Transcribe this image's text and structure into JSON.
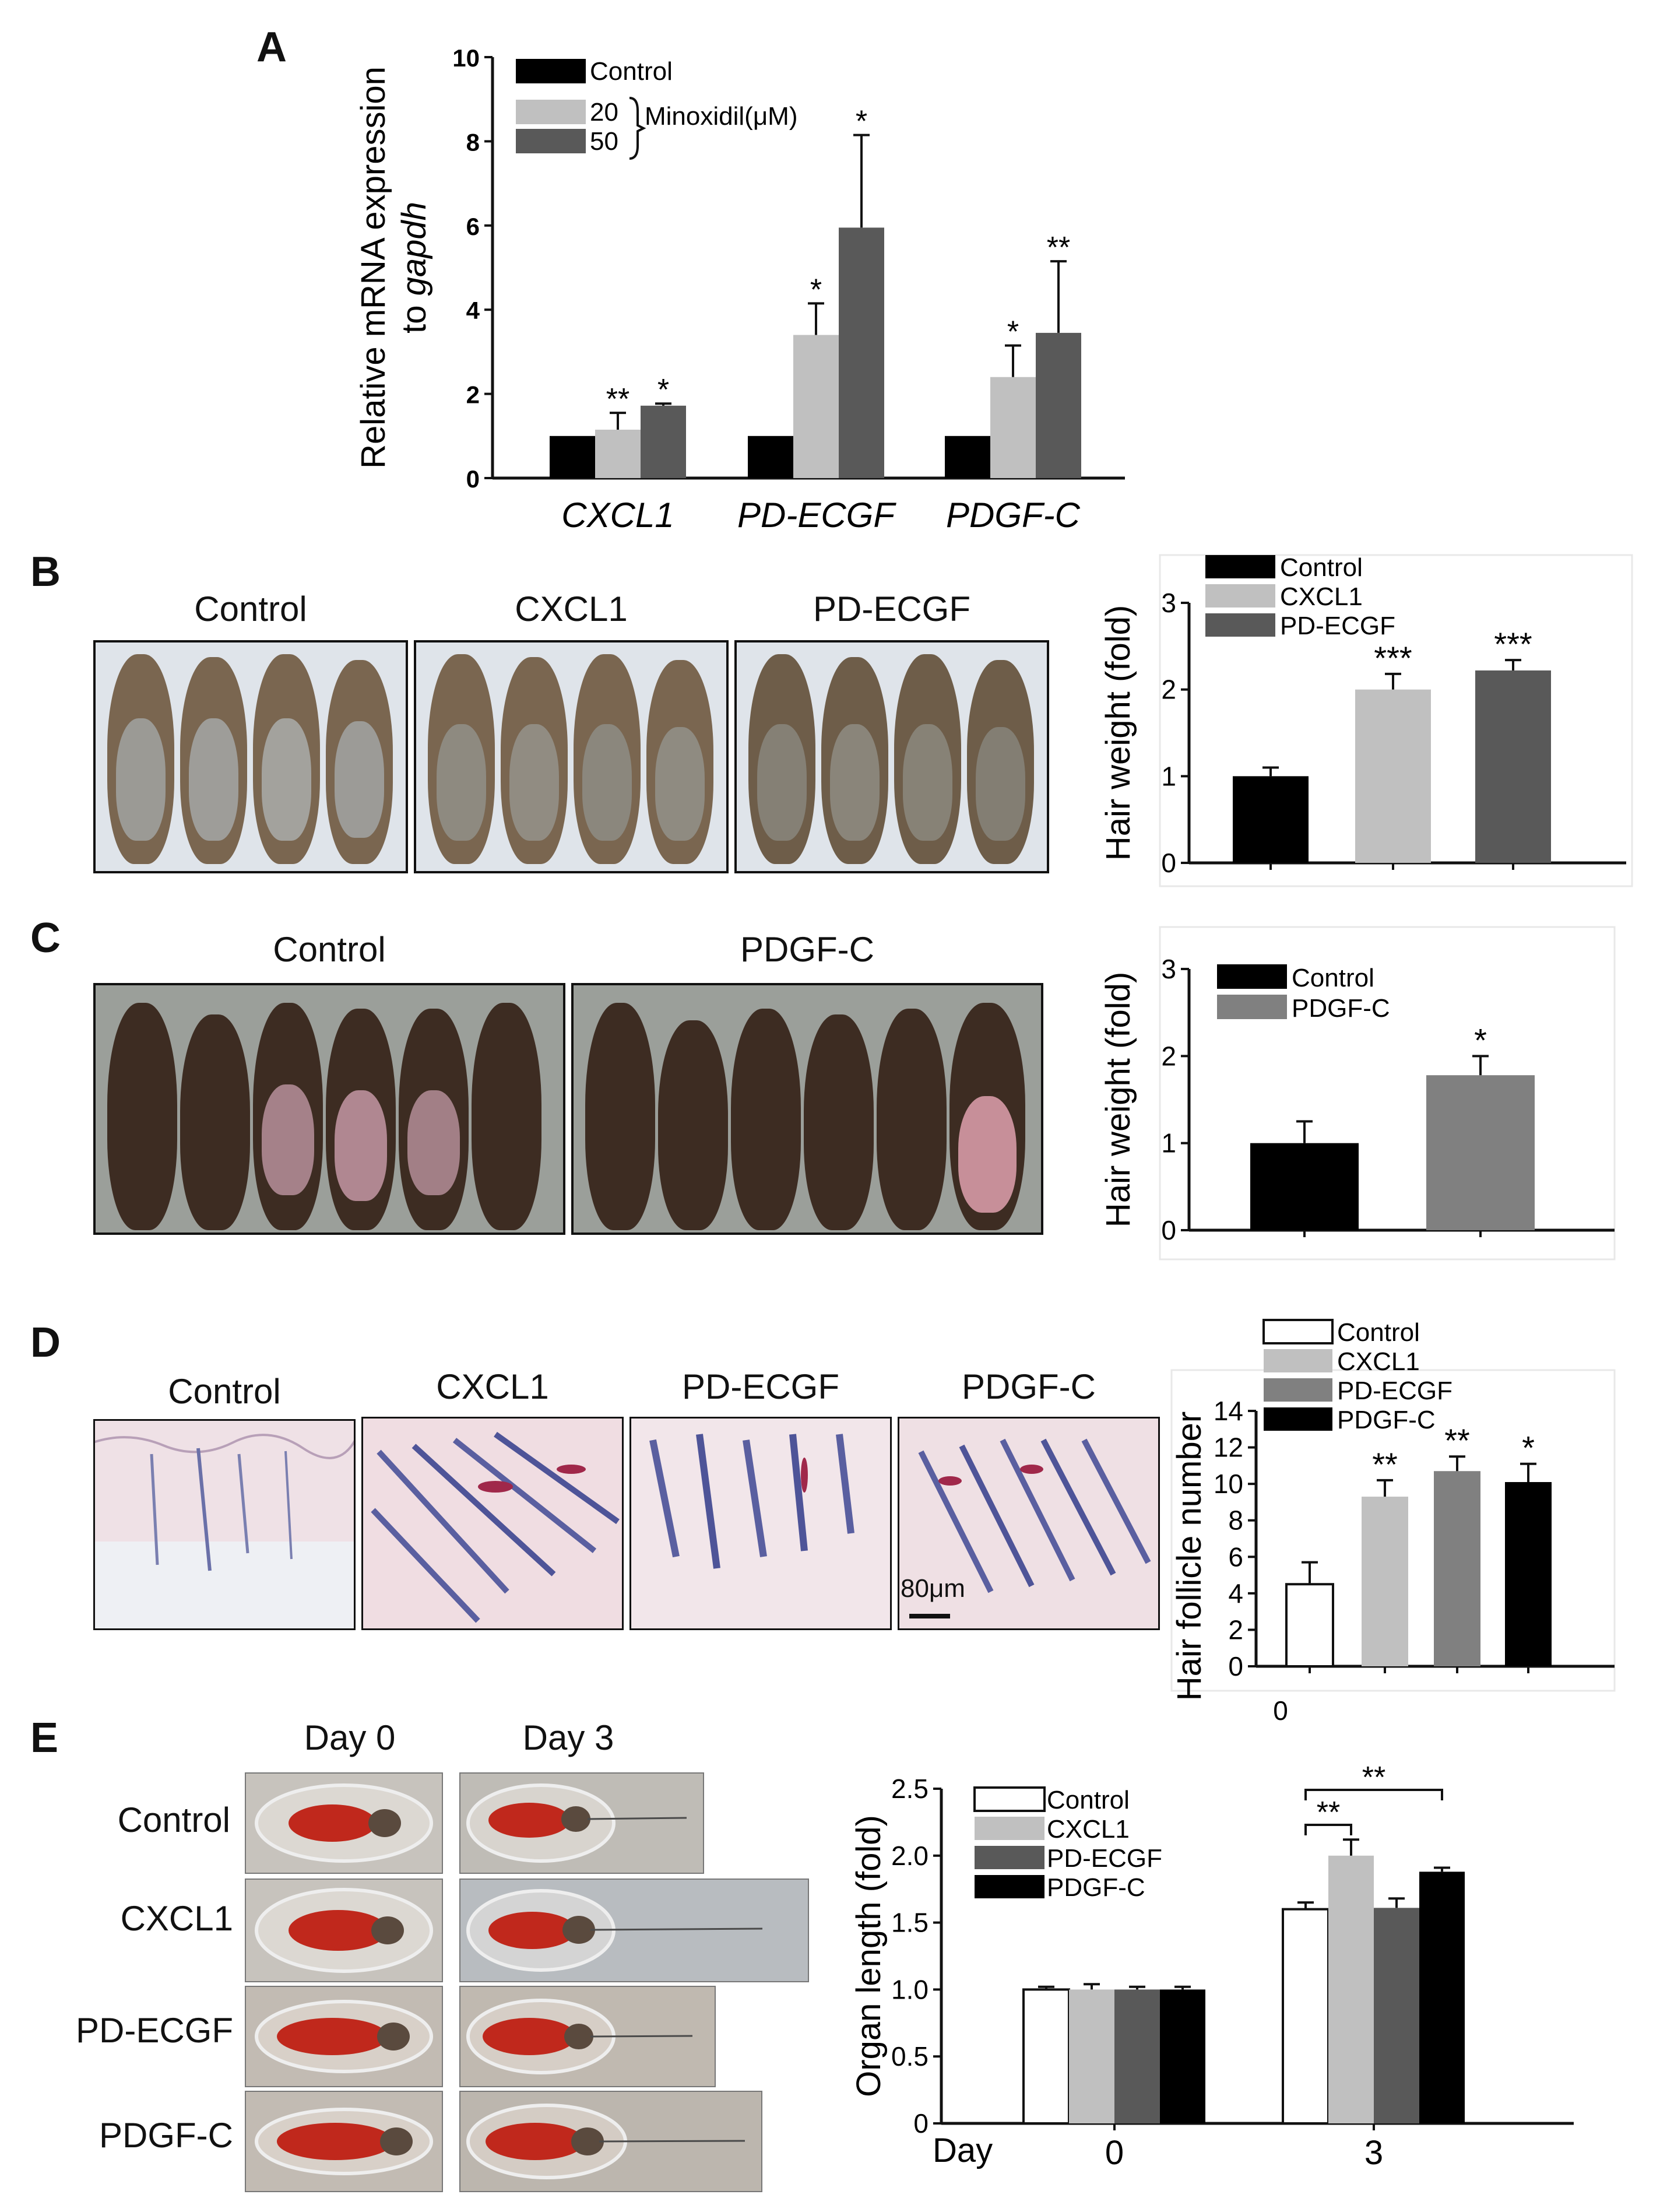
{
  "panels": {
    "A": {
      "letter": "A"
    },
    "B": {
      "letter": "B",
      "photo_labels": [
        "Control",
        "CXCL1",
        "PD-ECGF"
      ]
    },
    "C": {
      "letter": "C",
      "photo_labels": [
        "Control",
        "PDGF-C"
      ]
    },
    "D": {
      "letter": "D",
      "photo_labels": [
        "Control",
        "CXCL1",
        "PD-ECGF",
        "PDGF-C"
      ],
      "scale_bar": "80μm"
    },
    "E": {
      "letter": "E",
      "column_labels": [
        "Day 0",
        "Day 3"
      ],
      "row_labels": [
        "Control",
        "CXCL1",
        "PD-ECGF",
        "PDGF-C"
      ]
    }
  },
  "colors": {
    "black": "#000000",
    "light_gray": "#c0c0c0",
    "dark_gray": "#595959",
    "mid_gray": "#808080",
    "white": "#ffffff",
    "mouse_brown": "#6b5a45",
    "mouse_dark": "#3a2a1f",
    "shaved_skin": "#9a9a95",
    "pink_skin": "#c98a94",
    "histo_bg": "#f1e2e6",
    "organ_red": "#c0281c"
  },
  "chart_data": [
    {
      "id": "A",
      "type": "bar",
      "ylabel_main": "Relative mRNA expression",
      "ylabel_to": "to ",
      "ylabel_gene": "gapdh",
      "ylim": [
        0,
        10
      ],
      "yticks": [
        "0",
        "2",
        "4",
        "6",
        "8",
        "10"
      ],
      "categories": [
        "CXCL1",
        "PD-ECGF",
        "PDGF-C"
      ],
      "legend": [
        "Control",
        "20",
        "50"
      ],
      "legend_group": "Minoxidil(μM)",
      "series": [
        {
          "name": "Control",
          "color": "#000000",
          "values": [
            1,
            1,
            1
          ],
          "errors": [
            0,
            0,
            0
          ],
          "sig": [
            "",
            "",
            ""
          ]
        },
        {
          "name": "20",
          "color": "#c0c0c0",
          "values": [
            1.15,
            3.4,
            2.4
          ],
          "errors": [
            0.4,
            0.75,
            0.75
          ],
          "sig": [
            "**",
            "*",
            "*"
          ]
        },
        {
          "name": "50",
          "color": "#595959",
          "values": [
            1.72,
            5.95,
            3.45
          ],
          "errors": [
            0.05,
            2.2,
            1.7
          ],
          "sig": [
            "*",
            "*",
            "**"
          ]
        }
      ]
    },
    {
      "id": "B",
      "type": "bar",
      "ylabel": "Hair weight  (fold)",
      "ylim": [
        0,
        3
      ],
      "yticks": [
        "0",
        "1",
        "2",
        "3"
      ],
      "categories": [
        "Control",
        "CXCL1",
        "PD-ECGF"
      ],
      "colors": [
        "#000000",
        "#c0c0c0",
        "#595959"
      ],
      "values": [
        1.0,
        2.0,
        2.22
      ],
      "errors": [
        0.1,
        0.18,
        0.12
      ],
      "sig": [
        "",
        "***",
        "***"
      ],
      "legend": [
        "Control",
        "CXCL1",
        "PD-ECGF"
      ]
    },
    {
      "id": "C",
      "type": "bar",
      "ylabel": "Hair weight  (fold)",
      "ylim": [
        0,
        3
      ],
      "yticks": [
        "0",
        "1",
        "2",
        "3"
      ],
      "categories": [
        "Control",
        "PDGF-C"
      ],
      "colors": [
        "#000000",
        "#808080"
      ],
      "values": [
        1.0,
        1.78
      ],
      "errors": [
        0.25,
        0.22
      ],
      "sig": [
        "",
        "*"
      ],
      "legend": [
        "Control",
        "PDGF-C"
      ]
    },
    {
      "id": "D",
      "type": "bar",
      "ylabel": "Hair follicle  number",
      "ylim": [
        0,
        14
      ],
      "yticks": [
        "0",
        "2",
        "4",
        "6",
        "8",
        "10",
        "12",
        "14"
      ],
      "xlabel_below": "0",
      "categories": [
        "Control",
        "CXCL1",
        "PD-ECGF",
        "PDGF-C"
      ],
      "colors": [
        "#ffffff",
        "#c0c0c0",
        "#808080",
        "#000000"
      ],
      "values": [
        4.5,
        9.3,
        10.7,
        10.1
      ],
      "errors": [
        1.2,
        0.9,
        0.8,
        1.0
      ],
      "sig": [
        "",
        "**",
        "**",
        "*"
      ],
      "legend": [
        "Control",
        "CXCL1",
        "PD-ECGF",
        "PDGF-C"
      ]
    },
    {
      "id": "E",
      "type": "bar",
      "ylabel": "Organ length  (fold)",
      "ylim": [
        0,
        2.5
      ],
      "yticks": [
        "0",
        "0.5",
        "1.0",
        "1.5",
        "2.0",
        "2.5"
      ],
      "xlabel": "Day",
      "categories": [
        "0",
        "3"
      ],
      "legend": [
        "Control",
        "CXCL1",
        "PD-ECGF",
        "PDGF-C"
      ],
      "series": [
        {
          "name": "Control",
          "color": "#ffffff",
          "values": [
            1.0,
            1.6
          ],
          "errors": [
            0.02,
            0.05
          ]
        },
        {
          "name": "CXCL1",
          "color": "#c0c0c0",
          "values": [
            1.0,
            2.0
          ],
          "errors": [
            0.04,
            0.12
          ]
        },
        {
          "name": "PD-ECGF",
          "color": "#595959",
          "values": [
            1.0,
            1.61
          ],
          "errors": [
            0.02,
            0.07
          ]
        },
        {
          "name": "PDGF-C",
          "color": "#000000",
          "values": [
            1.0,
            1.88
          ],
          "errors": [
            0.02,
            0.03
          ]
        }
      ],
      "brackets": [
        {
          "from_series": 0,
          "to_series": 1,
          "category": 1,
          "label": "**"
        },
        {
          "from_series": 0,
          "to_series": 3,
          "category": 1,
          "label": "**"
        }
      ]
    }
  ]
}
